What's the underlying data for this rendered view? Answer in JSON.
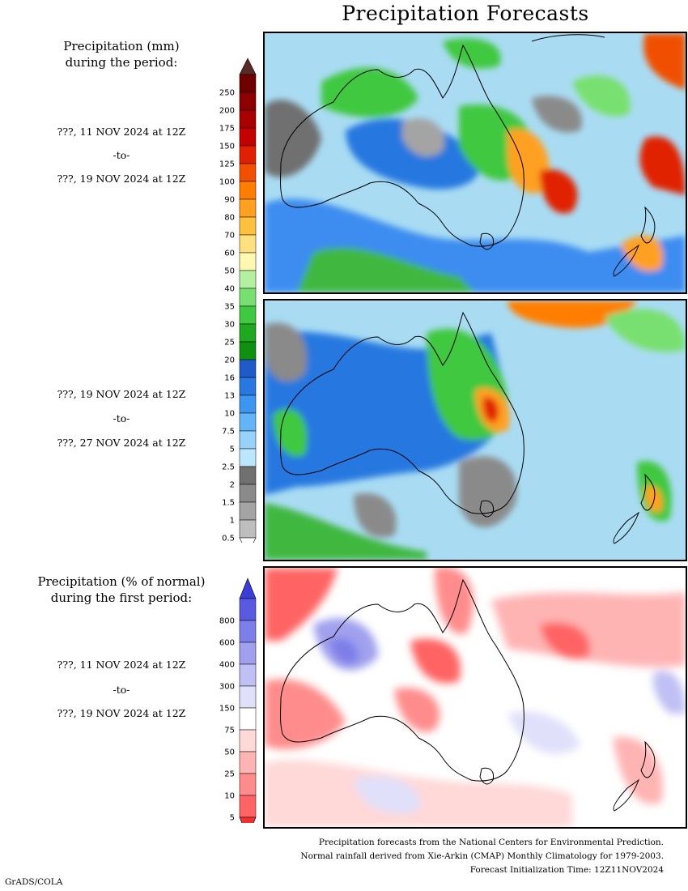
{
  "title": "Precipitation Forecasts",
  "left": {
    "header_mm": [
      "Precipitation (mm)",
      "during the period:"
    ],
    "period1": [
      "???, 11 NOV 2024 at 12Z",
      "-to-",
      "???, 19 NOV 2024 at 12Z"
    ],
    "period2": [
      "???, 19 NOV 2024 at 12Z",
      "-to-",
      "???, 27 NOV 2024 at 12Z"
    ],
    "header_pct": [
      "Precipitation (% of normal)",
      "during the first period:"
    ],
    "period3": [
      "???, 11 NOV 2024 at 12Z",
      "-to-",
      "???, 19 NOV 2024 at 12Z"
    ]
  },
  "colorbar_mm": {
    "labels": [
      "250",
      "200",
      "175",
      "150",
      "125",
      "100",
      "90",
      "80",
      "70",
      "60",
      "50",
      "40",
      "35",
      "30",
      "25",
      "20",
      "16",
      "13",
      "10",
      "7.5",
      "5",
      "2.5",
      "2",
      "1.5",
      "1",
      "0.5"
    ],
    "colors": [
      "#6e0000",
      "#8c0000",
      "#a80000",
      "#c40000",
      "#e02000",
      "#f05000",
      "#ff7e00",
      "#ffa020",
      "#ffc040",
      "#ffe080",
      "#fff8b0",
      "#b4f0a0",
      "#78e070",
      "#40c840",
      "#20a820",
      "#109010",
      "#1e5ac8",
      "#2878e0",
      "#3c96f0",
      "#64b4f8",
      "#96d2fa",
      "#bce6fb",
      "#707070",
      "#8a8a8a",
      "#a4a4a4",
      "#bebebe"
    ],
    "top_color": "#5a2a24"
  },
  "colorbar_pct": {
    "labels": [
      "800",
      "600",
      "400",
      "300",
      "150",
      "75",
      "50",
      "25",
      "10",
      "5"
    ],
    "colors": [
      "#5a5ae0",
      "#7e7ee8",
      "#a0a0ee",
      "#c0c0f4",
      "#e0e0fa",
      "#ffffff",
      "#ffd8d8",
      "#ffb4b4",
      "#ff8c8c",
      "#ff6464"
    ],
    "top_color": "#3c3cd8",
    "bottom_color": "#f03030"
  },
  "footer": [
    "Precipitation forecasts from the National Centers for Environmental Prediction.",
    "Normal rainfall derived from Xie-Arkin (CMAP) Monthly Climatology for 1979-2003.",
    "Forecast Initialization Time: 12Z11NOV2024"
  ],
  "credit": "GrADS/COLA"
}
